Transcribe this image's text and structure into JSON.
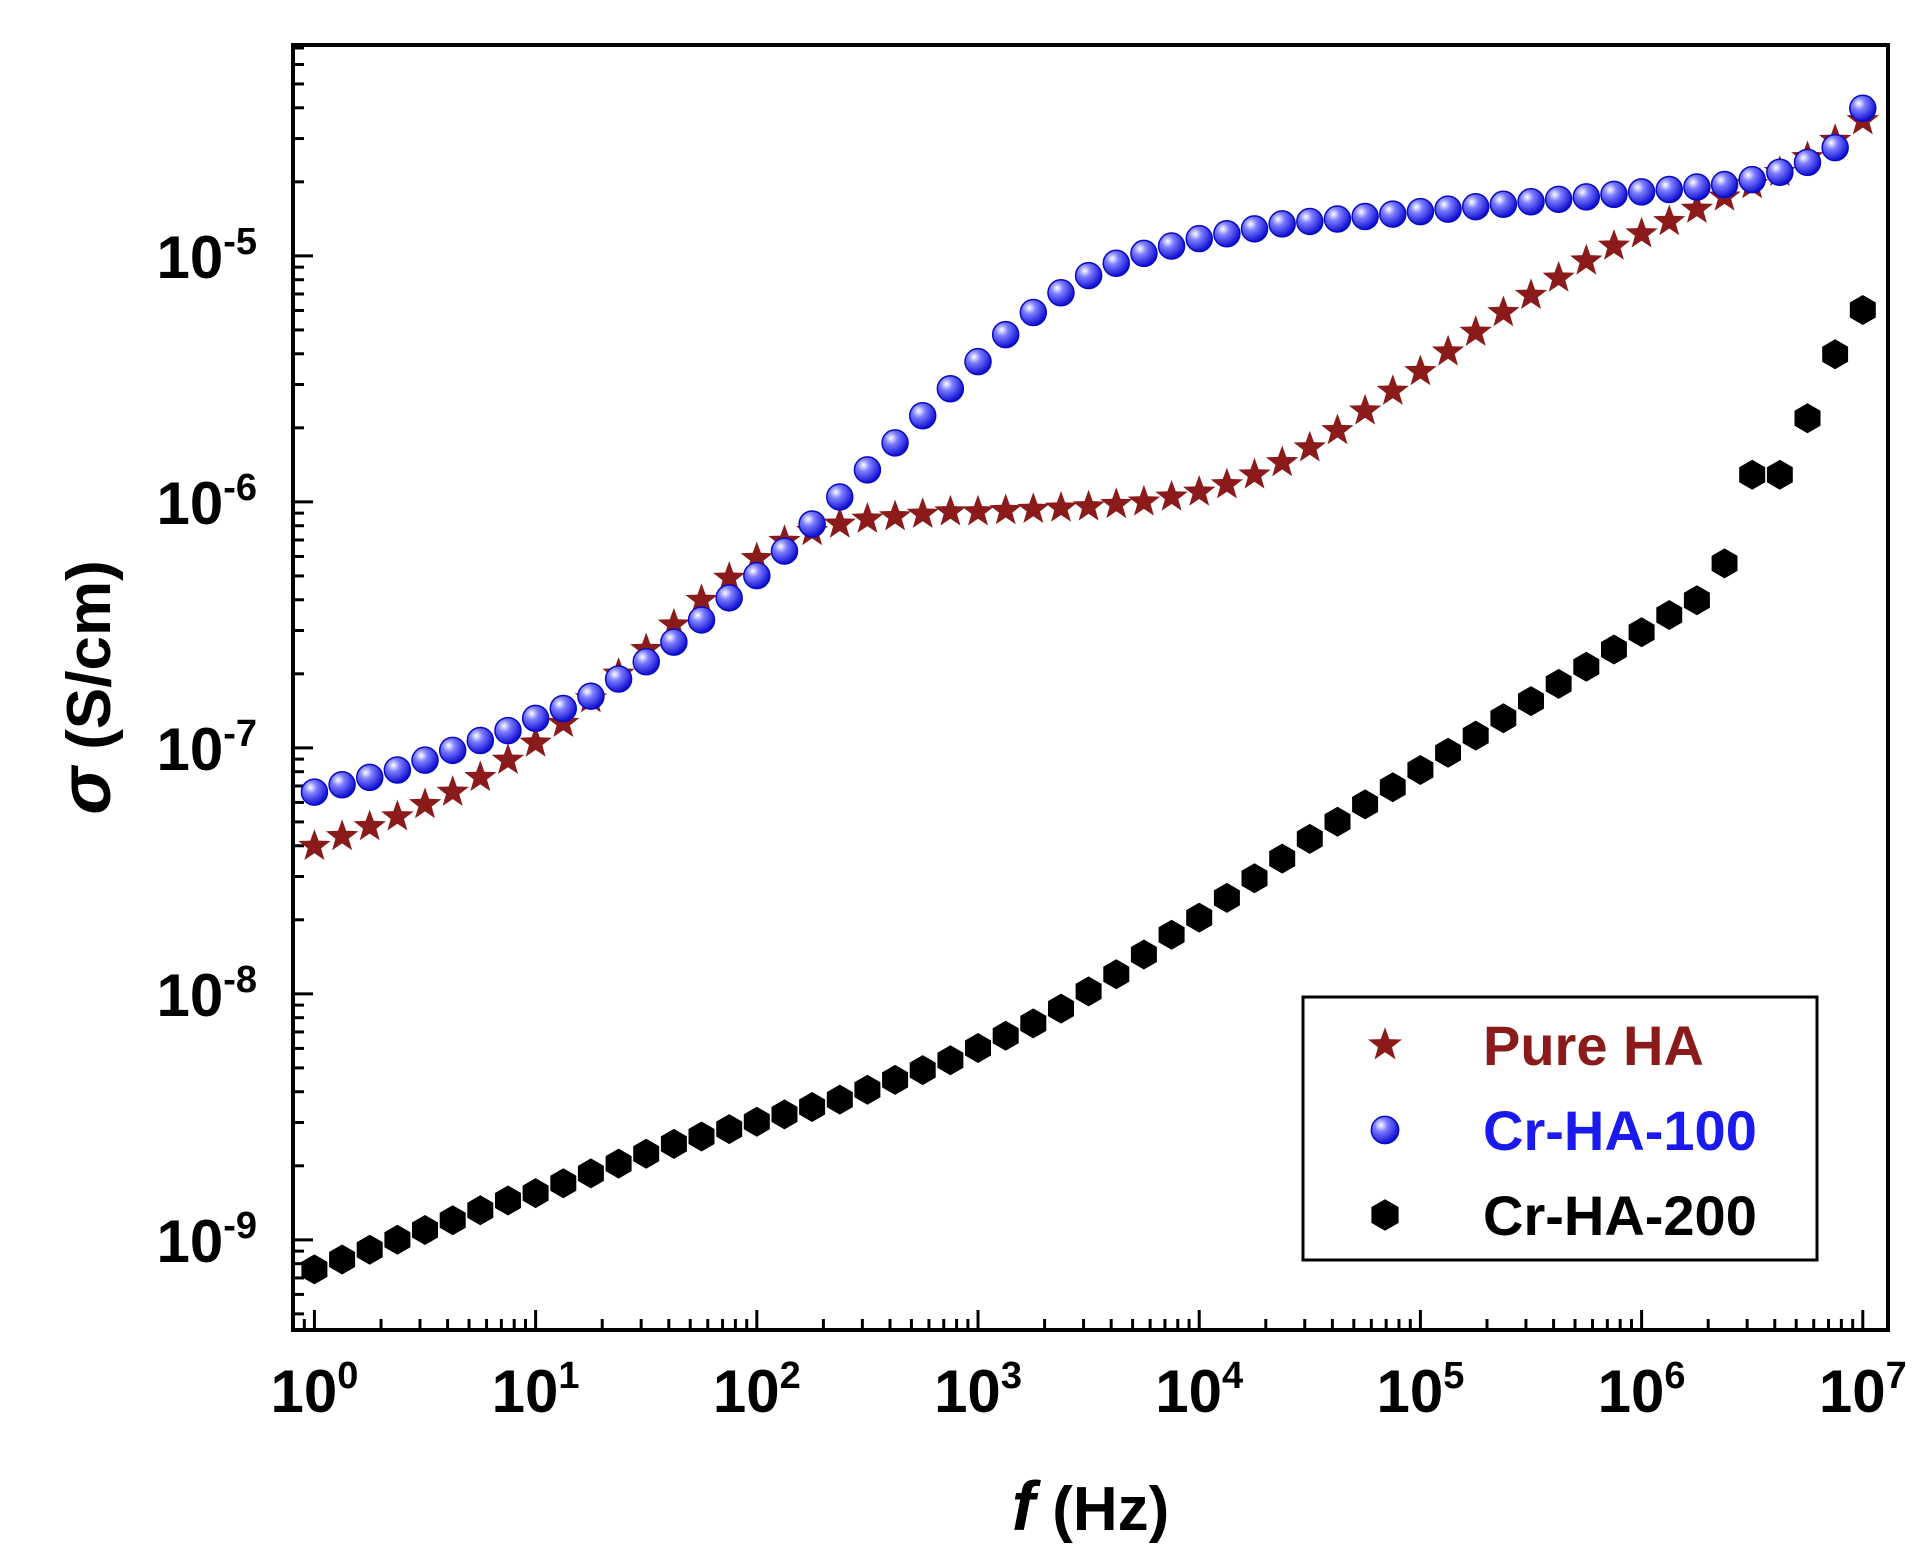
{
  "chart_data": {
    "type": "scatter",
    "title": "",
    "xlabel": {
      "symbol": "f",
      "unit": "(Hz)"
    },
    "ylabel": {
      "symbol": "σ",
      "unit": "(S/cm)"
    },
    "x_scale": "log",
    "y_scale": "log",
    "xlim": [
      0.8,
      13000000
    ],
    "ylim": [
      4.3e-10,
      7.2e-05
    ],
    "x_ticks": [
      {
        "base": "10",
        "exp": "0",
        "value": 1
      },
      {
        "base": "10",
        "exp": "1",
        "value": 10
      },
      {
        "base": "10",
        "exp": "2",
        "value": 100
      },
      {
        "base": "10",
        "exp": "3",
        "value": 1000
      },
      {
        "base": "10",
        "exp": "4",
        "value": 10000
      },
      {
        "base": "10",
        "exp": "5",
        "value": 100000
      },
      {
        "base": "10",
        "exp": "6",
        "value": 1000000
      },
      {
        "base": "10",
        "exp": "7",
        "value": 10000000
      }
    ],
    "y_ticks": [
      {
        "base": "10",
        "exp": "-9",
        "value": 1e-09
      },
      {
        "base": "10",
        "exp": "-8",
        "value": 1e-08
      },
      {
        "base": "10",
        "exp": "-7",
        "value": 1e-07
      },
      {
        "base": "10",
        "exp": "-6",
        "value": 1e-06
      },
      {
        "base": "10",
        "exp": "-5",
        "value": 1e-05
      }
    ],
    "legend_position": "bottom-right",
    "series": [
      {
        "name": "Pure HA",
        "marker": "star",
        "color": "#8b1a1a",
        "x_log": [
          0,
          0.125,
          0.25,
          0.375,
          0.5,
          0.625,
          0.75,
          0.875,
          1,
          1.125,
          1.25,
          1.375,
          1.5,
          1.625,
          1.75,
          1.875,
          2,
          2.125,
          2.25,
          2.375,
          2.5,
          2.625,
          2.75,
          2.875,
          3,
          3.125,
          3.25,
          3.375,
          3.5,
          3.625,
          3.75,
          3.875,
          4,
          4.125,
          4.25,
          4.375,
          4.5,
          4.625,
          4.75,
          4.875,
          5,
          5.125,
          5.25,
          5.375,
          5.5,
          5.625,
          5.75,
          5.875,
          6,
          6.125,
          6.25,
          6.375,
          6.5,
          6.625,
          6.75,
          6.875,
          7
        ],
        "y_log": [
          -7.4,
          -7.36,
          -7.32,
          -7.28,
          -7.23,
          -7.18,
          -7.12,
          -7.05,
          -6.98,
          -6.9,
          -6.8,
          -6.7,
          -6.6,
          -6.5,
          -6.4,
          -6.31,
          -6.23,
          -6.16,
          -6.12,
          -6.09,
          -6.07,
          -6.06,
          -6.05,
          -6.04,
          -6.04,
          -6.035,
          -6.03,
          -6.025,
          -6.02,
          -6.01,
          -6.0,
          -5.98,
          -5.96,
          -5.93,
          -5.89,
          -5.84,
          -5.78,
          -5.71,
          -5.63,
          -5.55,
          -5.47,
          -5.39,
          -5.31,
          -5.23,
          -5.16,
          -5.09,
          -5.02,
          -4.96,
          -4.91,
          -4.86,
          -4.81,
          -4.76,
          -4.71,
          -4.66,
          -4.6,
          -4.53,
          -4.45
        ]
      },
      {
        "name": "Cr-HA-100",
        "marker": "sphere",
        "color": "#1a1aee",
        "x_log": [
          0,
          0.125,
          0.25,
          0.375,
          0.5,
          0.625,
          0.75,
          0.875,
          1,
          1.125,
          1.25,
          1.375,
          1.5,
          1.625,
          1.75,
          1.875,
          2,
          2.125,
          2.25,
          2.375,
          2.5,
          2.625,
          2.75,
          2.875,
          3,
          3.125,
          3.25,
          3.375,
          3.5,
          3.625,
          3.75,
          3.875,
          4,
          4.125,
          4.25,
          4.375,
          4.5,
          4.625,
          4.75,
          4.875,
          5,
          5.125,
          5.25,
          5.375,
          5.5,
          5.625,
          5.75,
          5.875,
          6,
          6.125,
          6.25,
          6.375,
          6.5,
          6.625,
          6.75,
          6.875,
          7
        ],
        "y_log": [
          -7.18,
          -7.15,
          -7.12,
          -7.09,
          -7.05,
          -7.01,
          -6.97,
          -6.93,
          -6.88,
          -6.84,
          -6.79,
          -6.72,
          -6.65,
          -6.57,
          -6.48,
          -6.39,
          -6.3,
          -6.2,
          -6.09,
          -5.98,
          -5.87,
          -5.76,
          -5.65,
          -5.54,
          -5.43,
          -5.32,
          -5.23,
          -5.15,
          -5.08,
          -5.03,
          -4.99,
          -4.96,
          -4.93,
          -4.91,
          -4.89,
          -4.87,
          -4.86,
          -4.85,
          -4.84,
          -4.83,
          -4.82,
          -4.81,
          -4.8,
          -4.79,
          -4.78,
          -4.77,
          -4.76,
          -4.75,
          -4.74,
          -4.73,
          -4.72,
          -4.71,
          -4.69,
          -4.66,
          -4.62,
          -4.56,
          -4.4
        ]
      },
      {
        "name": "Cr-HA-200",
        "marker": "hexagon",
        "color": "#000000",
        "x_log": [
          0,
          0.125,
          0.25,
          0.375,
          0.5,
          0.625,
          0.75,
          0.875,
          1,
          1.125,
          1.25,
          1.375,
          1.5,
          1.625,
          1.75,
          1.875,
          2,
          2.125,
          2.25,
          2.375,
          2.5,
          2.625,
          2.75,
          2.875,
          3,
          3.125,
          3.25,
          3.375,
          3.5,
          3.625,
          3.75,
          3.875,
          4,
          4.125,
          4.25,
          4.375,
          4.5,
          4.625,
          4.75,
          4.875,
          5,
          5.125,
          5.25,
          5.375,
          5.5,
          5.625,
          5.75,
          5.875,
          6,
          6.125,
          6.25,
          6.375,
          6.5,
          6.625,
          6.75,
          6.875,
          7
        ],
        "y_log": [
          -9.12,
          -9.08,
          -9.04,
          -9.0,
          -8.96,
          -8.92,
          -8.88,
          -8.84,
          -8.81,
          -8.77,
          -8.73,
          -8.69,
          -8.65,
          -8.61,
          -8.58,
          -8.55,
          -8.52,
          -8.49,
          -8.46,
          -8.43,
          -8.39,
          -8.35,
          -8.31,
          -8.27,
          -8.22,
          -8.17,
          -8.12,
          -8.06,
          -7.99,
          -7.92,
          -7.84,
          -7.76,
          -7.69,
          -7.61,
          -7.53,
          -7.45,
          -7.37,
          -7.3,
          -7.23,
          -7.16,
          -7.09,
          -7.02,
          -6.95,
          -6.88,
          -6.81,
          -6.74,
          -6.67,
          -6.6,
          -6.53,
          -6.46,
          -6.4,
          -6.25,
          -5.89,
          -5.89,
          -5.66,
          -5.4,
          -5.22
        ]
      }
    ]
  }
}
